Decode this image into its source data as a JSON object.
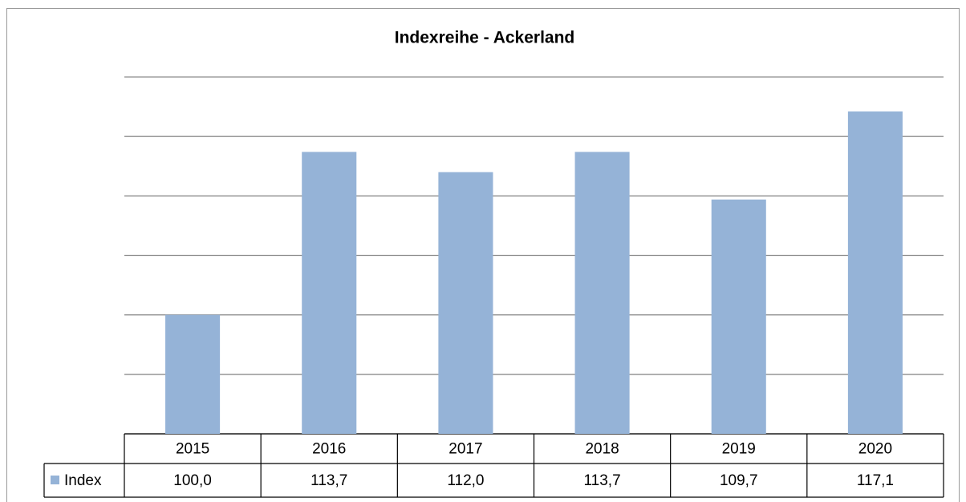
{
  "chart_data": {
    "type": "bar",
    "title": "Indexreihe - Ackerland",
    "categories": [
      "2015",
      "2016",
      "2017",
      "2018",
      "2019",
      "2020"
    ],
    "series": [
      {
        "name": "Index",
        "color": "#95b3d7",
        "values": [
          100.0,
          113.7,
          112.0,
          113.7,
          109.7,
          117.1
        ],
        "value_labels": [
          "100,0",
          "113,7",
          "112,0",
          "113,7",
          "109,7",
          "117,1"
        ]
      }
    ],
    "ylim": [
      90,
      120
    ],
    "yticks": [
      90,
      95,
      100,
      105,
      110,
      115,
      120
    ],
    "grid": true
  }
}
